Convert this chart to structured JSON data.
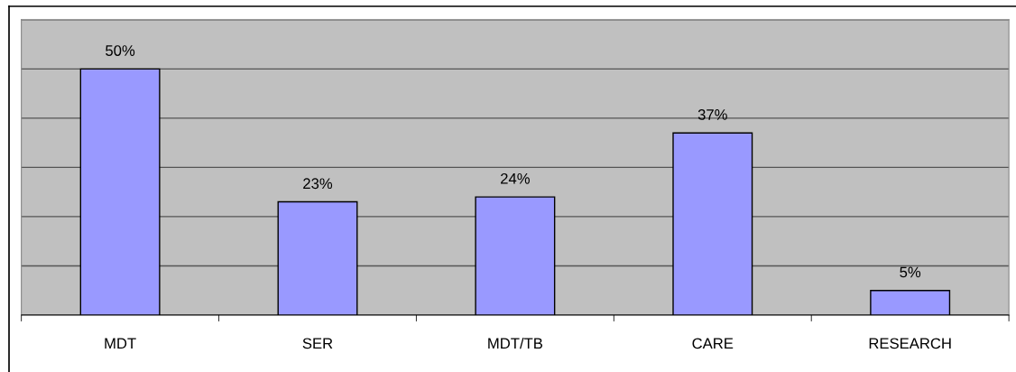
{
  "chart_data": {
    "type": "bar",
    "categories": [
      "MDT",
      "SER",
      "MDT/TB",
      "CARE",
      "RESEARCH"
    ],
    "values": [
      50,
      23,
      24,
      37,
      5
    ],
    "value_labels": [
      "50%",
      "23%",
      "24%",
      "37%",
      "5%"
    ],
    "color": "#9999ff",
    "ylim": [
      0,
      60
    ],
    "yticks": [
      {
        "value": 0,
        "label": null
      },
      {
        "value": 10,
        "label": null
      },
      {
        "value": 20,
        "label": null
      },
      {
        "value": 30,
        "label": null
      },
      {
        "value": 40,
        "label": null
      },
      {
        "value": 50,
        "label": null
      },
      {
        "value": 60,
        "label": null
      }
    ],
    "grid": "y",
    "tick_labels": "x"
  }
}
